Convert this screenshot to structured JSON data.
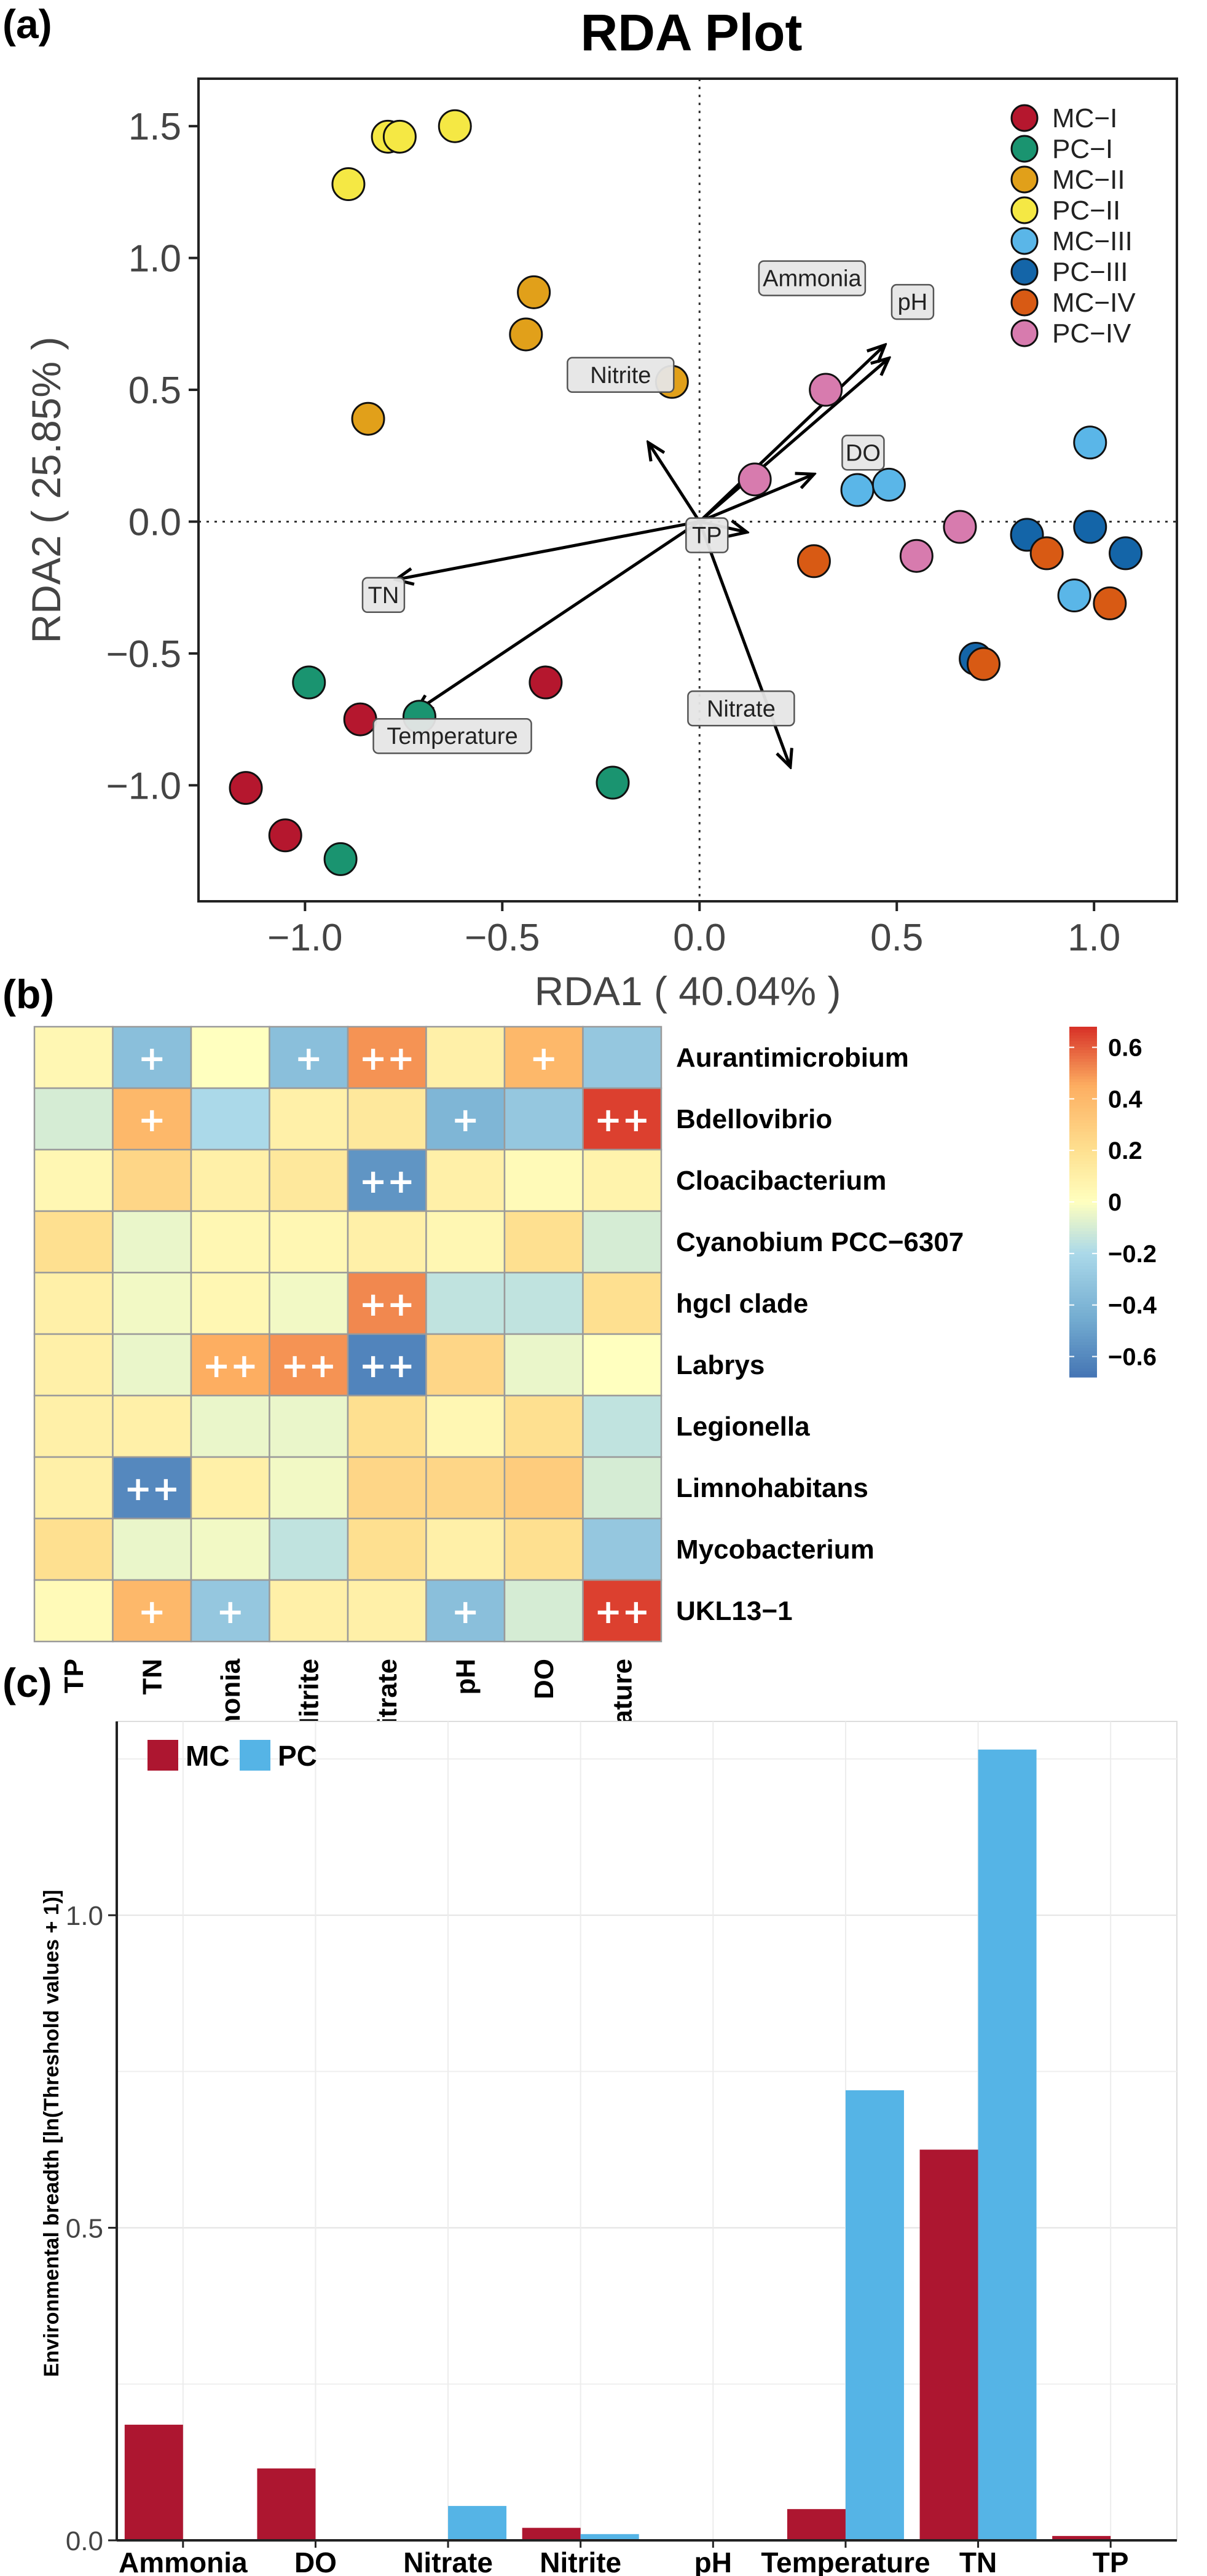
{
  "chart_data": [
    {
      "panel": "(a)",
      "type": "scatter",
      "title": "RDA Plot",
      "xlabel": "RDA1 ( 40.04% )",
      "ylabel": "RDA2 ( 25.85% )",
      "xlim": [
        -1.27,
        1.21
      ],
      "ylim": [
        -1.44,
        1.68
      ],
      "xticks": [
        -1.0,
        -0.5,
        0.0,
        0.5,
        1.0
      ],
      "xtick_labels": [
        "−1.0",
        "−0.5",
        "0.0",
        "0.5",
        "1.0"
      ],
      "yticks": [
        -1.0,
        -0.5,
        0.0,
        0.5,
        1.0,
        1.5
      ],
      "ytick_labels": [
        "−1.0",
        "−0.5",
        "0.0",
        "0.5",
        "1.0",
        "1.5"
      ],
      "legend_position": "top-right",
      "groups": [
        {
          "name": "MC−I",
          "color": "#B5172E",
          "points": [
            [
              -1.15,
              -1.01
            ],
            [
              -1.05,
              -1.19
            ],
            [
              -0.86,
              -0.75
            ],
            [
              -0.39,
              -0.61
            ]
          ]
        },
        {
          "name": "PC−I",
          "color": "#1A9470",
          "points": [
            [
              -0.99,
              -0.61
            ],
            [
              -0.71,
              -0.74
            ],
            [
              -0.91,
              -1.28
            ],
            [
              -0.22,
              -0.99
            ]
          ]
        },
        {
          "name": "MC−II",
          "color": "#E1A01A",
          "points": [
            [
              -0.42,
              0.87
            ],
            [
              -0.44,
              0.71
            ],
            [
              -0.84,
              0.39
            ],
            [
              -0.07,
              0.53
            ]
          ]
        },
        {
          "name": "PC−II",
          "color": "#F5E844",
          "points": [
            [
              -0.79,
              1.46
            ],
            [
              -0.76,
              1.46
            ],
            [
              -0.62,
              1.5
            ],
            [
              -0.89,
              1.28
            ]
          ]
        },
        {
          "name": "MC−III",
          "color": "#5AB6E8",
          "points": [
            [
              0.4,
              0.12
            ],
            [
              0.48,
              0.14
            ],
            [
              0.99,
              0.3
            ],
            [
              0.95,
              -0.28
            ]
          ]
        },
        {
          "name": "PC−III",
          "color": "#1465A8",
          "points": [
            [
              0.83,
              -0.05
            ],
            [
              0.99,
              -0.02
            ],
            [
              1.08,
              -0.12
            ],
            [
              0.7,
              -0.52
            ]
          ]
        },
        {
          "name": "MC−IV",
          "color": "#D85A14",
          "points": [
            [
              0.29,
              -0.15
            ],
            [
              0.72,
              -0.54
            ],
            [
              0.88,
              -0.12
            ],
            [
              1.04,
              -0.31
            ]
          ]
        },
        {
          "name": "PC−IV",
          "color": "#D77BAE",
          "points": [
            [
              0.32,
              0.5
            ],
            [
              0.14,
              0.16
            ],
            [
              0.55,
              -0.13
            ],
            [
              0.66,
              -0.02
            ]
          ]
        }
      ],
      "vectors": [
        {
          "name": "Ammonia",
          "x": 0.48,
          "y": 0.62
        },
        {
          "name": "pH",
          "x": 0.47,
          "y": 0.67
        },
        {
          "name": "Nitrite",
          "x": -0.13,
          "y": 0.3
        },
        {
          "name": "DO",
          "x": 0.29,
          "y": 0.18
        },
        {
          "name": "TN",
          "x": -0.77,
          "y": -0.22
        },
        {
          "name": "TP",
          "x": 0.12,
          "y": -0.04
        },
        {
          "name": "Temperature",
          "x": -0.72,
          "y": -0.72
        },
        {
          "name": "Nitrate",
          "x": 0.23,
          "y": -0.93
        }
      ]
    },
    {
      "panel": "(b)",
      "type": "heatmap",
      "x": [
        "TP",
        "TN",
        "Ammonia",
        "Nitrite",
        "Nitrate",
        "pH",
        "DO",
        "Temperature"
      ],
      "y": [
        "Aurantimicrobium",
        "Bdellovibrio",
        "Cloacibacterium",
        "Cyanobium PCC−6307",
        "hgcI clade",
        "Labrys",
        "Legionella",
        "Limnohabitans",
        "Mycobacterium",
        "UKL13−1"
      ],
      "values": [
        [
          0.05,
          -0.35,
          0.0,
          -0.35,
          0.5,
          0.1,
          0.4,
          -0.3
        ],
        [
          -0.1,
          0.4,
          -0.2,
          0.1,
          0.15,
          -0.4,
          -0.3,
          0.65
        ],
        [
          0.05,
          0.25,
          0.1,
          0.15,
          -0.55,
          0.1,
          0.03,
          0.08
        ],
        [
          0.2,
          -0.05,
          0.05,
          0.05,
          0.1,
          0.05,
          0.2,
          -0.1
        ],
        [
          0.1,
          -0.03,
          0.05,
          -0.03,
          0.52,
          -0.15,
          -0.15,
          0.2
        ],
        [
          0.1,
          -0.05,
          0.45,
          0.5,
          -0.62,
          0.25,
          -0.05,
          0.0
        ],
        [
          0.1,
          0.1,
          -0.05,
          -0.05,
          0.2,
          0.05,
          0.2,
          -0.15
        ],
        [
          0.1,
          -0.6,
          0.1,
          -0.03,
          0.25,
          0.25,
          0.3,
          -0.1
        ],
        [
          0.2,
          -0.05,
          -0.03,
          -0.15,
          0.2,
          0.1,
          0.2,
          -0.3
        ],
        [
          0.03,
          0.4,
          -0.3,
          0.1,
          0.1,
          -0.35,
          -0.1,
          0.65
        ]
      ],
      "significance": [
        [
          "",
          "+",
          "",
          "+",
          "++",
          "",
          "+",
          ""
        ],
        [
          "",
          "+",
          "",
          "",
          "",
          "+",
          "",
          "++"
        ],
        [
          "",
          "",
          "",
          "",
          "++",
          "",
          "",
          ""
        ],
        [
          "",
          "",
          "",
          "",
          "",
          "",
          "",
          ""
        ],
        [
          "",
          "",
          "",
          "",
          "++",
          "",
          "",
          ""
        ],
        [
          "",
          "",
          "++",
          "++",
          "++",
          "",
          "",
          ""
        ],
        [
          "",
          "",
          "",
          "",
          "",
          "",
          "",
          ""
        ],
        [
          "",
          "++",
          "",
          "",
          "",
          "",
          "",
          ""
        ],
        [
          "",
          "",
          "",
          "",
          "",
          "",
          "",
          ""
        ],
        [
          "",
          "+",
          "+",
          "",
          "",
          "+",
          "",
          "++"
        ]
      ],
      "colorbar_ticks": [
        0.6,
        0.4,
        0.2,
        0,
        -0.2,
        -0.4,
        -0.6
      ],
      "colorbar_labels": [
        "0.6",
        "0.4",
        "0.2",
        "0",
        "−0.2",
        "−0.4",
        "−0.6"
      ],
      "colorbar_range": [
        -0.68,
        0.68
      ]
    },
    {
      "panel": "(c)",
      "type": "bar",
      "categories": [
        "Ammonia",
        "DO",
        "Nitrate",
        "Nitrite",
        "pH",
        "Temperature",
        "TN",
        "TP"
      ],
      "series": [
        {
          "name": "MC",
          "color": "#AD1630",
          "values": [
            0.185,
            0.115,
            0.0,
            0.02,
            0.0,
            0.05,
            0.625,
            0.007
          ]
        },
        {
          "name": "PC",
          "color": "#55B4E6",
          "values": [
            0.0,
            0.0,
            0.055,
            0.01,
            0.0,
            0.72,
            1.265,
            0.0
          ]
        }
      ],
      "ylabel": "Environmental breadth [ln(Threshold values + 1)]",
      "ylim": [
        0,
        1.31
      ],
      "yticks": [
        0.0,
        0.5,
        1.0
      ],
      "ytick_labels": [
        "0.0",
        "0.5",
        "1.0"
      ],
      "legend_position": "top-left"
    }
  ]
}
